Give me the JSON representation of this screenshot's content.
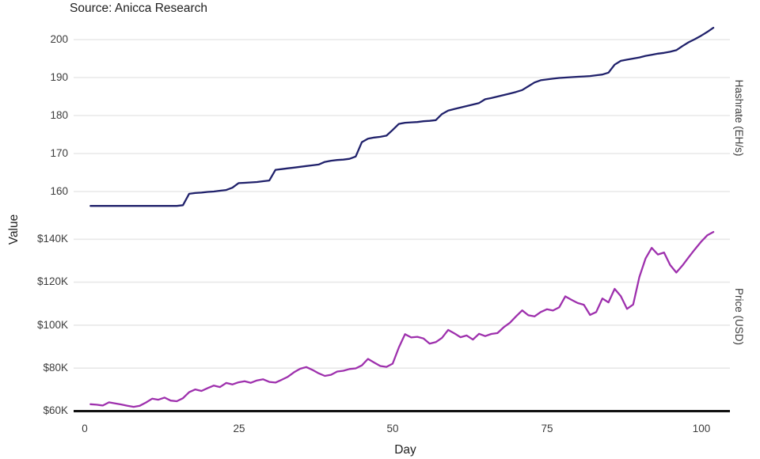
{
  "source_note": "Source: Anicca Research",
  "colors": {
    "hashrate_line": "#20216b",
    "price_line": "#9e30ad",
    "gridline": "#e8e8e8",
    "axis_line": "#101010",
    "tick_text": "#3c3c3c"
  },
  "axes": {
    "y_title": "Value",
    "x_title": "Day",
    "x_ticks": [
      "0",
      "25",
      "50",
      "75",
      "100"
    ],
    "facets": [
      {
        "label": "Hashrate (EH/s)",
        "y_ticks": [
          "200",
          "190",
          "180",
          "170",
          "160"
        ]
      },
      {
        "label": "Price (USD)",
        "y_ticks": [
          "$140K",
          "$120K",
          "$100K",
          "$80K",
          "$60K"
        ]
      }
    ]
  },
  "chart_data": {
    "type": "line",
    "title": "",
    "xlabel": "Day",
    "ylabel": "Value",
    "source": "Anicca Research",
    "x_range": [
      0,
      102
    ],
    "x_tick_values": [
      0,
      25,
      50,
      75,
      100
    ],
    "grid": "horizontal-only",
    "legend": "none",
    "facets": [
      {
        "name": "Hashrate (EH/s)",
        "position": "top",
        "y_tick_values": [
          160,
          170,
          180,
          190,
          200
        ],
        "y_range": [
          153,
          205
        ]
      },
      {
        "name": "Price (USD)",
        "position": "bottom",
        "y_tick_values_usd": [
          60000,
          80000,
          100000,
          120000,
          140000
        ],
        "y_range_usd": [
          58000,
          146000
        ]
      }
    ],
    "x": [
      1,
      2,
      3,
      4,
      5,
      6,
      7,
      8,
      9,
      10,
      11,
      12,
      13,
      14,
      15,
      16,
      17,
      18,
      19,
      20,
      21,
      22,
      23,
      24,
      25,
      26,
      27,
      28,
      29,
      30,
      31,
      32,
      33,
      34,
      35,
      36,
      37,
      38,
      39,
      40,
      41,
      42,
      43,
      44,
      45,
      46,
      47,
      48,
      49,
      50,
      51,
      52,
      53,
      54,
      55,
      56,
      57,
      58,
      59,
      60,
      61,
      62,
      63,
      64,
      65,
      66,
      67,
      68,
      69,
      70,
      71,
      72,
      73,
      74,
      75,
      76,
      77,
      78,
      79,
      80,
      81,
      82,
      83,
      84,
      85,
      86,
      87,
      88,
      89,
      90,
      91,
      92,
      93,
      94,
      95,
      96,
      97,
      98,
      99,
      100,
      101,
      102
    ],
    "series": [
      {
        "name": "Hashrate (EH/s)",
        "facet": "top",
        "unit": "EH/s",
        "color": "#20216b",
        "values": [
          156.2,
          156.2,
          156.2,
          156.2,
          156.2,
          156.2,
          156.2,
          156.2,
          156.2,
          156.2,
          156.2,
          156.2,
          156.2,
          156.2,
          156.2,
          156.4,
          159.4,
          159.6,
          159.7,
          159.9,
          160.0,
          160.2,
          160.4,
          161.0,
          162.2,
          162.3,
          162.4,
          162.5,
          162.7,
          162.9,
          165.7,
          165.9,
          166.1,
          166.3,
          166.5,
          166.7,
          166.9,
          167.1,
          167.8,
          168.1,
          168.3,
          168.4,
          168.6,
          169.2,
          173.0,
          173.9,
          174.2,
          174.4,
          174.7,
          176.2,
          177.8,
          178.1,
          178.2,
          178.3,
          178.5,
          178.6,
          178.8,
          180.4,
          181.3,
          181.7,
          182.1,
          182.5,
          182.9,
          183.3,
          184.3,
          184.6,
          185.0,
          185.4,
          185.8,
          186.2,
          186.7,
          187.7,
          188.7,
          189.3,
          189.5,
          189.7,
          189.9,
          190.0,
          190.1,
          190.2,
          190.3,
          190.4,
          190.6,
          190.8,
          191.3,
          193.4,
          194.4,
          194.7,
          195.0,
          195.3,
          195.7,
          196.0,
          196.3,
          196.5,
          196.8,
          197.2,
          198.3,
          199.3,
          200.1,
          201.0,
          202.0,
          203.1
        ]
      },
      {
        "name": "Price (USD)",
        "facet": "bottom",
        "unit": "USD (thousands)",
        "color": "#9e30ad",
        "values": [
          63.2,
          63.0,
          62.6,
          64.1,
          63.6,
          63.1,
          62.5,
          62.0,
          62.5,
          64.0,
          65.8,
          65.3,
          66.3,
          64.9,
          64.6,
          66.0,
          68.8,
          70.1,
          69.4,
          70.7,
          71.9,
          71.2,
          73.1,
          72.4,
          73.4,
          73.9,
          73.2,
          74.3,
          74.8,
          73.6,
          73.3,
          74.6,
          76.0,
          78.1,
          79.7,
          80.5,
          79.2,
          77.6,
          76.4,
          76.9,
          78.4,
          78.8,
          79.6,
          79.9,
          81.3,
          84.3,
          82.6,
          81.0,
          80.6,
          82.1,
          89.6,
          95.8,
          94.3,
          94.6,
          93.8,
          91.4,
          92.1,
          94.1,
          97.8,
          96.2,
          94.4,
          95.2,
          93.3,
          96.0,
          94.9,
          95.9,
          96.3,
          99.0,
          101.1,
          104.1,
          106.9,
          104.6,
          104.1,
          106.1,
          107.4,
          106.8,
          108.3,
          113.4,
          111.8,
          110.3,
          109.5,
          104.8,
          106.1,
          112.4,
          110.6,
          116.9,
          113.5,
          107.6,
          109.6,
          122.4,
          131.0,
          136.0,
          132.9,
          133.8,
          128.0,
          124.5,
          127.8,
          131.6,
          135.3,
          138.8,
          141.8,
          143.4
        ]
      }
    ]
  }
}
